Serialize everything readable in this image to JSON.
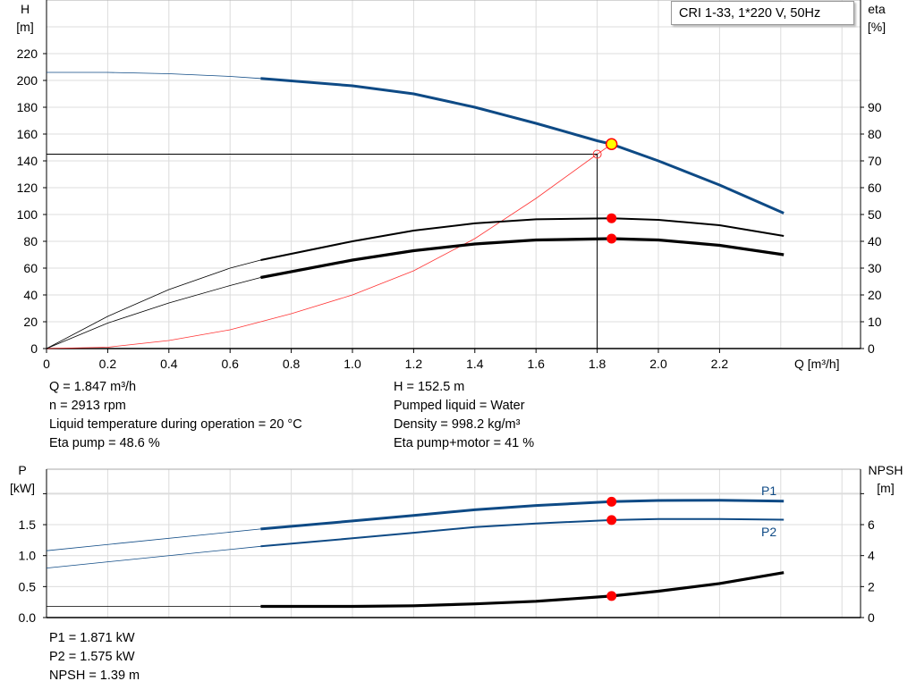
{
  "chart_data": [
    {
      "type": "line",
      "title": "CRI 1-33, 1*220 V, 50Hz",
      "xlabel": "Q [m³/h]",
      "ylabel": [
        "H",
        "[m]"
      ],
      "y2label": [
        "eta",
        "[%]"
      ],
      "xlim": [
        0,
        2.6
      ],
      "ylim": [
        0,
        240
      ],
      "y2lim": [
        0,
        120
      ],
      "xticks": [
        "0",
        "0.2",
        "0.4",
        "0.6",
        "0.8",
        "1.0",
        "1.2",
        "1.4",
        "1.6",
        "1.8",
        "2.0",
        "2.2"
      ],
      "yticks": [
        "0",
        "20",
        "40",
        "60",
        "80",
        "100",
        "120",
        "140",
        "160",
        "180",
        "200",
        "220"
      ],
      "y2ticks": [
        "0",
        "10",
        "20",
        "30",
        "40",
        "50",
        "60",
        "70",
        "80",
        "90"
      ],
      "grid": true,
      "colors": {
        "head": "#0e4a85",
        "eta": "#000000",
        "system": "#ff3333",
        "point": "#ff0000",
        "duty": "#ffff00"
      },
      "series": [
        {
          "id": "H",
          "axis": "left",
          "x": [
            0,
            0.2,
            0.4,
            0.6,
            0.7,
            1.0,
            1.2,
            1.4,
            1.6,
            1.8,
            1.847,
            2.0,
            2.2,
            2.41
          ],
          "y": [
            206,
            206,
            205,
            203,
            201.5,
            196,
            190,
            180,
            168,
            155,
            152.5,
            140,
            122,
            101
          ]
        },
        {
          "id": "eta_pump",
          "axis": "right",
          "x": [
            0,
            0.2,
            0.4,
            0.6,
            0.7,
            1.0,
            1.2,
            1.4,
            1.6,
            1.847,
            2.0,
            2.2,
            2.41
          ],
          "y": [
            0,
            12,
            22,
            30,
            33,
            40,
            44,
            46.7,
            48.2,
            48.6,
            48,
            46,
            42
          ]
        },
        {
          "id": "eta_pump_motor",
          "axis": "right",
          "x": [
            0,
            0.2,
            0.4,
            0.6,
            0.7,
            1.0,
            1.2,
            1.4,
            1.6,
            1.847,
            2.0,
            2.2,
            2.41
          ],
          "y": [
            0,
            9.5,
            17,
            23.5,
            26.5,
            33,
            36.5,
            39,
            40.5,
            41,
            40.5,
            38.5,
            35
          ]
        },
        {
          "id": "system",
          "axis": "left",
          "x": [
            0,
            0.2,
            0.4,
            0.6,
            0.8,
            1.0,
            1.2,
            1.4,
            1.6,
            1.8,
            1.847
          ],
          "y": [
            0,
            1,
            6,
            14,
            26,
            40,
            58,
            82,
            112,
            145,
            152.5
          ]
        }
      ],
      "duty_point": {
        "Q": 1.847,
        "H": 152.5,
        "eta_pump": 48.6,
        "eta_pump_motor": 41
      },
      "requested_point": {
        "Q": 1.8,
        "H": 145
      }
    },
    {
      "type": "line",
      "ylabel": [
        "P",
        "[kW]"
      ],
      "y2label": [
        "NPSH",
        "[m]"
      ],
      "xlim": [
        0,
        2.6
      ],
      "ylim": [
        0,
        2.3
      ],
      "y2lim": [
        0,
        9.2
      ],
      "yticks": [
        "0.0",
        "0.5",
        "1.0",
        "1.5"
      ],
      "y2ticks": [
        "0",
        "2",
        "4",
        "6"
      ],
      "grid": true,
      "series": [
        {
          "id": "P1",
          "name": "P1",
          "axis": "left",
          "x": [
            0,
            0.7,
            1.0,
            1.2,
            1.4,
            1.6,
            1.847,
            2.0,
            2.2,
            2.41
          ],
          "y": [
            1.08,
            1.43,
            1.56,
            1.65,
            1.74,
            1.81,
            1.871,
            1.89,
            1.895,
            1.88
          ]
        },
        {
          "id": "P2",
          "name": "P2",
          "axis": "left",
          "x": [
            0,
            0.7,
            1.0,
            1.2,
            1.4,
            1.6,
            1.847,
            2.0,
            2.2,
            2.41
          ],
          "y": [
            0.8,
            1.15,
            1.28,
            1.37,
            1.46,
            1.52,
            1.575,
            1.59,
            1.59,
            1.58
          ]
        },
        {
          "id": "NPSH",
          "axis": "right",
          "x": [
            0,
            0.7,
            1.0,
            1.2,
            1.4,
            1.6,
            1.847,
            2.0,
            2.2,
            2.41
          ],
          "y": [
            0.72,
            0.72,
            0.72,
            0.76,
            0.88,
            1.05,
            1.39,
            1.7,
            2.2,
            2.9
          ]
        }
      ],
      "duty_point": {
        "Q": 1.847,
        "P1": 1.871,
        "P2": 1.575,
        "NPSH": 1.39
      }
    }
  ],
  "info": {
    "left": [
      "Q = 1.847 m³/h",
      "n = 2913 rpm",
      "Liquid temperature during operation = 20 °C",
      "Eta pump = 48.6 %"
    ],
    "right": [
      "H = 152.5 m",
      "Pumped liquid = Water",
      "Density = 998.2 kg/m³",
      "Eta pump+motor = 41 %"
    ],
    "bottom": [
      "P1 = 1.871 kW",
      "P2 = 1.575 kW",
      "NPSH = 1.39 m"
    ]
  }
}
